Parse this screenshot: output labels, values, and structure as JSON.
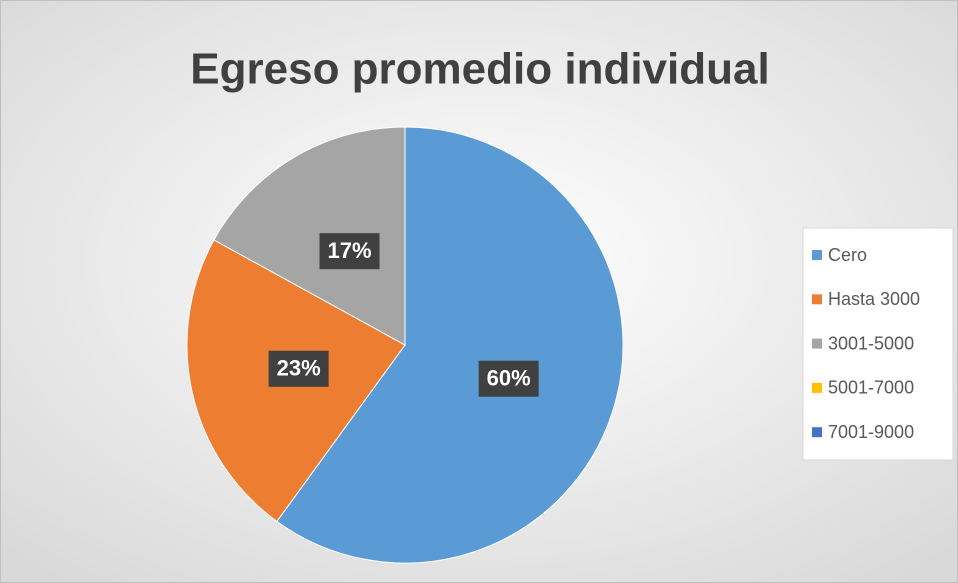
{
  "chart_data": {
    "type": "pie",
    "title": "Egreso promedio individual",
    "categories": [
      "Cero",
      "Hasta 3000",
      "3001-5000",
      "5001-7000",
      "7001-9000"
    ],
    "values": [
      60,
      23,
      17,
      0,
      0
    ],
    "value_labels": [
      "60%",
      "23%",
      "17%",
      null,
      null
    ],
    "colors": [
      "#5b9bd5",
      "#ed7d31",
      "#a5a5a5",
      "#ffc000",
      "#4472c4"
    ],
    "legend": "right"
  }
}
